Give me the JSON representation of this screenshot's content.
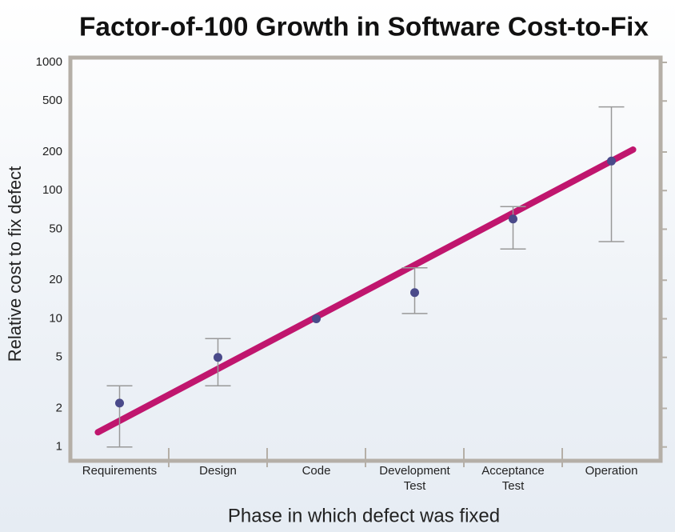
{
  "chart_data": {
    "type": "scatter",
    "title": "Factor-of-100 Growth in Software Cost-to-Fix",
    "x_label": "Phase in which defect was fixed",
    "y_label": "Relative cost to fix defect",
    "categories": [
      "Requirements",
      "Design",
      "Code",
      "Development Test",
      "Acceptance Test",
      "Operation"
    ],
    "values": [
      2.2,
      5,
      10,
      16,
      60,
      170
    ],
    "error_low": [
      1,
      3,
      null,
      11,
      35,
      40
    ],
    "error_high": [
      3,
      7,
      null,
      25,
      75,
      450
    ],
    "color": "#4a4a8a",
    "error_color": "#999999",
    "trend": {
      "values": [
        1.6,
        170
      ],
      "color": "#c0166e"
    },
    "log_scale": true,
    "ylim": [
      0.78,
      1090
    ],
    "yticks": [
      1,
      2,
      5,
      10,
      20,
      50,
      100,
      200,
      500,
      1000
    ]
  }
}
